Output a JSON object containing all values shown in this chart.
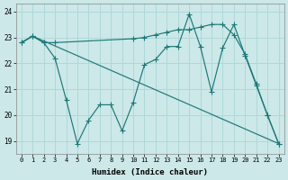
{
  "xlabel": "Humidex (Indice chaleur)",
  "xlim": [
    -0.5,
    23.5
  ],
  "ylim": [
    18.5,
    24.3
  ],
  "yticks": [
    19,
    20,
    21,
    22,
    23,
    24
  ],
  "xticks": [
    0,
    1,
    2,
    3,
    4,
    5,
    6,
    7,
    8,
    9,
    10,
    11,
    12,
    13,
    14,
    15,
    16,
    17,
    18,
    19,
    20,
    21,
    22,
    23
  ],
  "bg_color": "#cce8e8",
  "grid_color": "#b0d8d8",
  "line_color": "#1e7878",
  "line1": {
    "x": [
      0,
      1,
      2,
      3,
      4,
      5,
      6,
      7,
      8,
      9,
      10,
      11,
      12,
      13,
      14,
      15,
      16,
      17,
      18,
      19,
      20,
      21,
      22,
      23
    ],
    "y": [
      22.8,
      23.05,
      22.8,
      22.2,
      20.6,
      18.9,
      19.8,
      20.4,
      20.4,
      19.4,
      20.5,
      21.95,
      22.15,
      22.65,
      22.65,
      23.9,
      22.65,
      20.9,
      22.6,
      23.5,
      22.3,
      21.15,
      20.0,
      18.9
    ],
    "marker": true
  },
  "line2": {
    "x": [
      0,
      1,
      23
    ],
    "y": [
      22.8,
      23.05,
      18.9
    ],
    "marker": false
  },
  "line3": {
    "x": [
      0,
      1,
      2,
      3,
      10,
      11,
      12,
      13,
      14,
      15,
      16,
      17,
      18,
      19,
      20,
      21,
      22,
      23
    ],
    "y": [
      22.8,
      23.05,
      22.8,
      22.8,
      22.95,
      23.0,
      23.1,
      23.2,
      23.3,
      23.3,
      23.4,
      23.5,
      23.5,
      23.1,
      22.35,
      21.2,
      20.0,
      18.9
    ],
    "marker": true
  },
  "markersize": 2.5,
  "lw": 0.85
}
